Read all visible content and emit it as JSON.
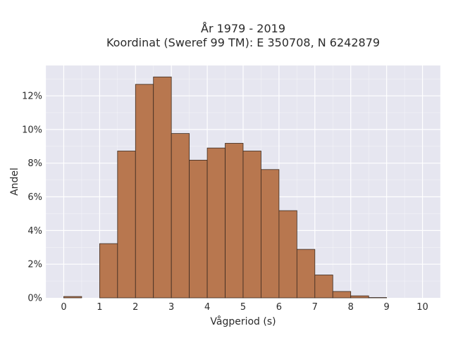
{
  "chart_data": {
    "type": "bar",
    "title_line1": "År 1979 - 2019",
    "title_line2": "Koordinat (Sweref 99 TM): E 350708, N 6242879",
    "xlabel": "Vågperiod (s)",
    "ylabel": "Andel",
    "bin_width": 0.5,
    "bins": [
      0,
      0.5,
      1,
      1.5,
      2,
      2.5,
      3,
      3.5,
      4,
      4.5,
      5,
      5.5,
      6,
      6.5,
      7,
      7.5,
      8,
      8.5,
      9,
      9.5
    ],
    "values": [
      0.0008,
      0,
      0.0322,
      0.0872,
      0.1268,
      0.1312,
      0.0976,
      0.0818,
      0.089,
      0.0918,
      0.0872,
      0.0762,
      0.0518,
      0.0288,
      0.0136,
      0.0038,
      0.0012,
      0.0002,
      0,
      0
    ],
    "xlim": [
      -0.5,
      10.5
    ],
    "ylim": [
      0,
      0.138
    ],
    "x_ticks": [
      0,
      1,
      2,
      3,
      4,
      5,
      6,
      7,
      8,
      9,
      10
    ],
    "y_ticks": [
      0,
      0.02,
      0.04,
      0.06,
      0.08,
      0.1,
      0.12
    ],
    "y_tick_labels": [
      "0%",
      "2%",
      "4%",
      "6%",
      "8%",
      "10%",
      "12%"
    ],
    "grid": true,
    "colors": {
      "bar_fill": "#b8774f",
      "bar_stroke": "#3a2a20",
      "plot_bg": "#e6e6f0",
      "grid": "#ffffff"
    }
  }
}
